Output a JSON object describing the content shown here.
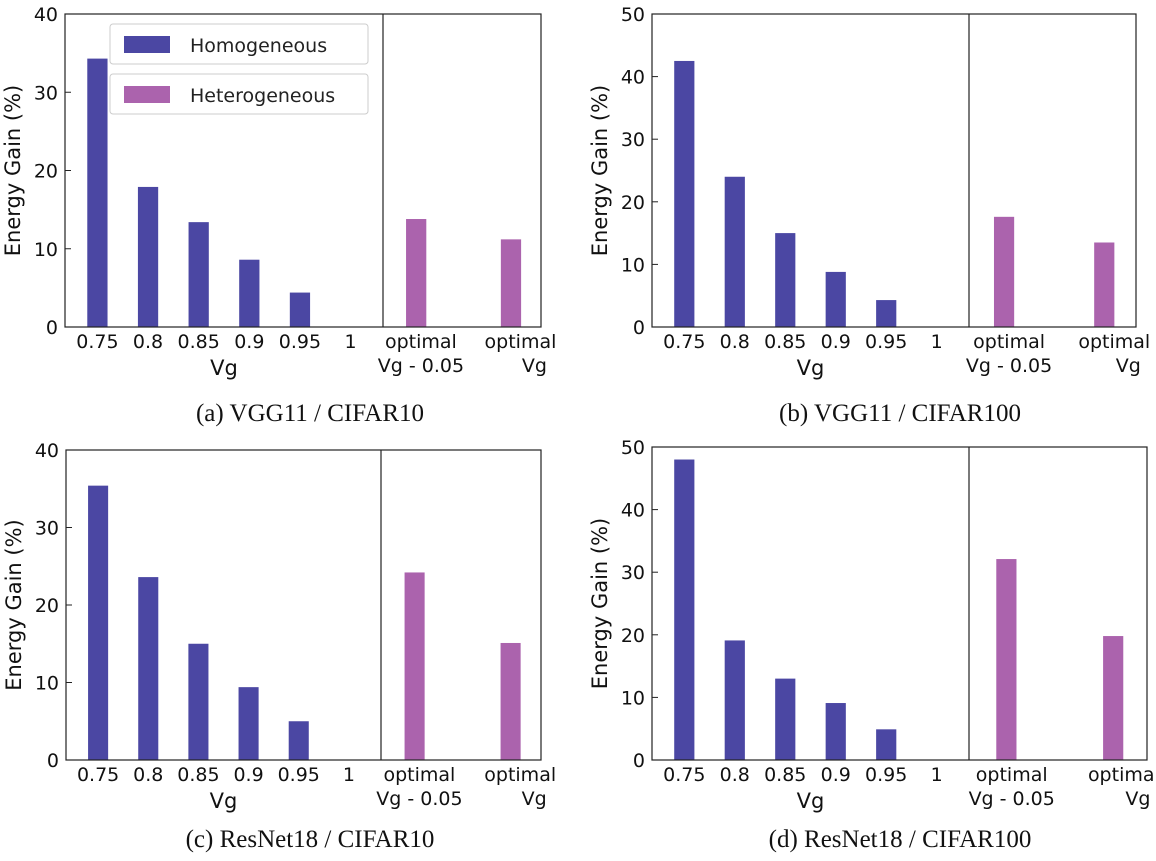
{
  "colors": {
    "homogeneous": "#4b47a3",
    "heterogeneous": "#ab63ad",
    "axis": "#222222"
  },
  "chart_data": [
    {
      "type": "bar",
      "caption": "(a) VGG11 / CIFAR10",
      "xlabel": "Vg",
      "ylabel": "Energy Gain (%)",
      "ylim": [
        0,
        40
      ],
      "yticks": [
        "0",
        "10",
        "20",
        "30",
        "40"
      ],
      "legend": {
        "placement": "top-left",
        "entries": [
          "Homogeneous",
          "Heterogeneous"
        ]
      },
      "homogeneous": {
        "categories": [
          "0.75",
          "0.8",
          "0.85",
          "0.9",
          "0.95",
          "1"
        ],
        "values": [
          34.3,
          17.9,
          13.4,
          8.6,
          4.4,
          0
        ]
      },
      "heterogeneous": {
        "categories": [
          [
            "optimal",
            "Vg - 0.05"
          ],
          [
            "optimal",
            "Vg"
          ]
        ],
        "values": [
          13.8,
          11.2
        ]
      }
    },
    {
      "type": "bar",
      "caption": "(b) VGG11 / CIFAR100",
      "xlabel": "Vg",
      "ylabel": "Energy Gain (%)",
      "ylim": [
        0,
        50
      ],
      "yticks": [
        "0",
        "10",
        "20",
        "30",
        "40",
        "50"
      ],
      "homogeneous": {
        "categories": [
          "0.75",
          "0.8",
          "0.85",
          "0.9",
          "0.95",
          "1"
        ],
        "values": [
          42.5,
          24.0,
          15.0,
          8.8,
          4.3,
          0
        ]
      },
      "heterogeneous": {
        "categories": [
          [
            "optimal",
            "Vg - 0.05"
          ],
          [
            "optimal",
            "Vg"
          ]
        ],
        "values": [
          17.6,
          13.5
        ]
      }
    },
    {
      "type": "bar",
      "caption": "(c) ResNet18 / CIFAR10",
      "xlabel": "Vg",
      "ylabel": "Energy Gain (%)",
      "ylim": [
        0,
        40
      ],
      "yticks": [
        "0",
        "10",
        "20",
        "30",
        "40"
      ],
      "homogeneous": {
        "categories": [
          "0.75",
          "0.8",
          "0.85",
          "0.9",
          "0.95",
          "1"
        ],
        "values": [
          35.4,
          23.6,
          15.0,
          9.4,
          5.0,
          0
        ]
      },
      "heterogeneous": {
        "categories": [
          [
            "optimal",
            "Vg - 0.05"
          ],
          [
            "optimal",
            "Vg"
          ]
        ],
        "values": [
          24.2,
          15.1
        ]
      }
    },
    {
      "type": "bar",
      "caption": "(d) ResNet18 / CIFAR100",
      "xlabel": "Vg",
      "ylabel": "Energy Gain (%)",
      "ylim": [
        0,
        50
      ],
      "yticks": [
        "0",
        "10",
        "20",
        "30",
        "40",
        "50"
      ],
      "homogeneous": {
        "categories": [
          "0.75",
          "0.8",
          "0.85",
          "0.9",
          "0.95",
          "1"
        ],
        "values": [
          48.0,
          19.1,
          13.0,
          9.1,
          4.9,
          0
        ]
      },
      "heterogeneous": {
        "categories": [
          [
            "optimal",
            "Vg - 0.05"
          ],
          [
            "optimal",
            "Vg"
          ]
        ],
        "values": [
          32.1,
          19.8
        ]
      }
    }
  ]
}
